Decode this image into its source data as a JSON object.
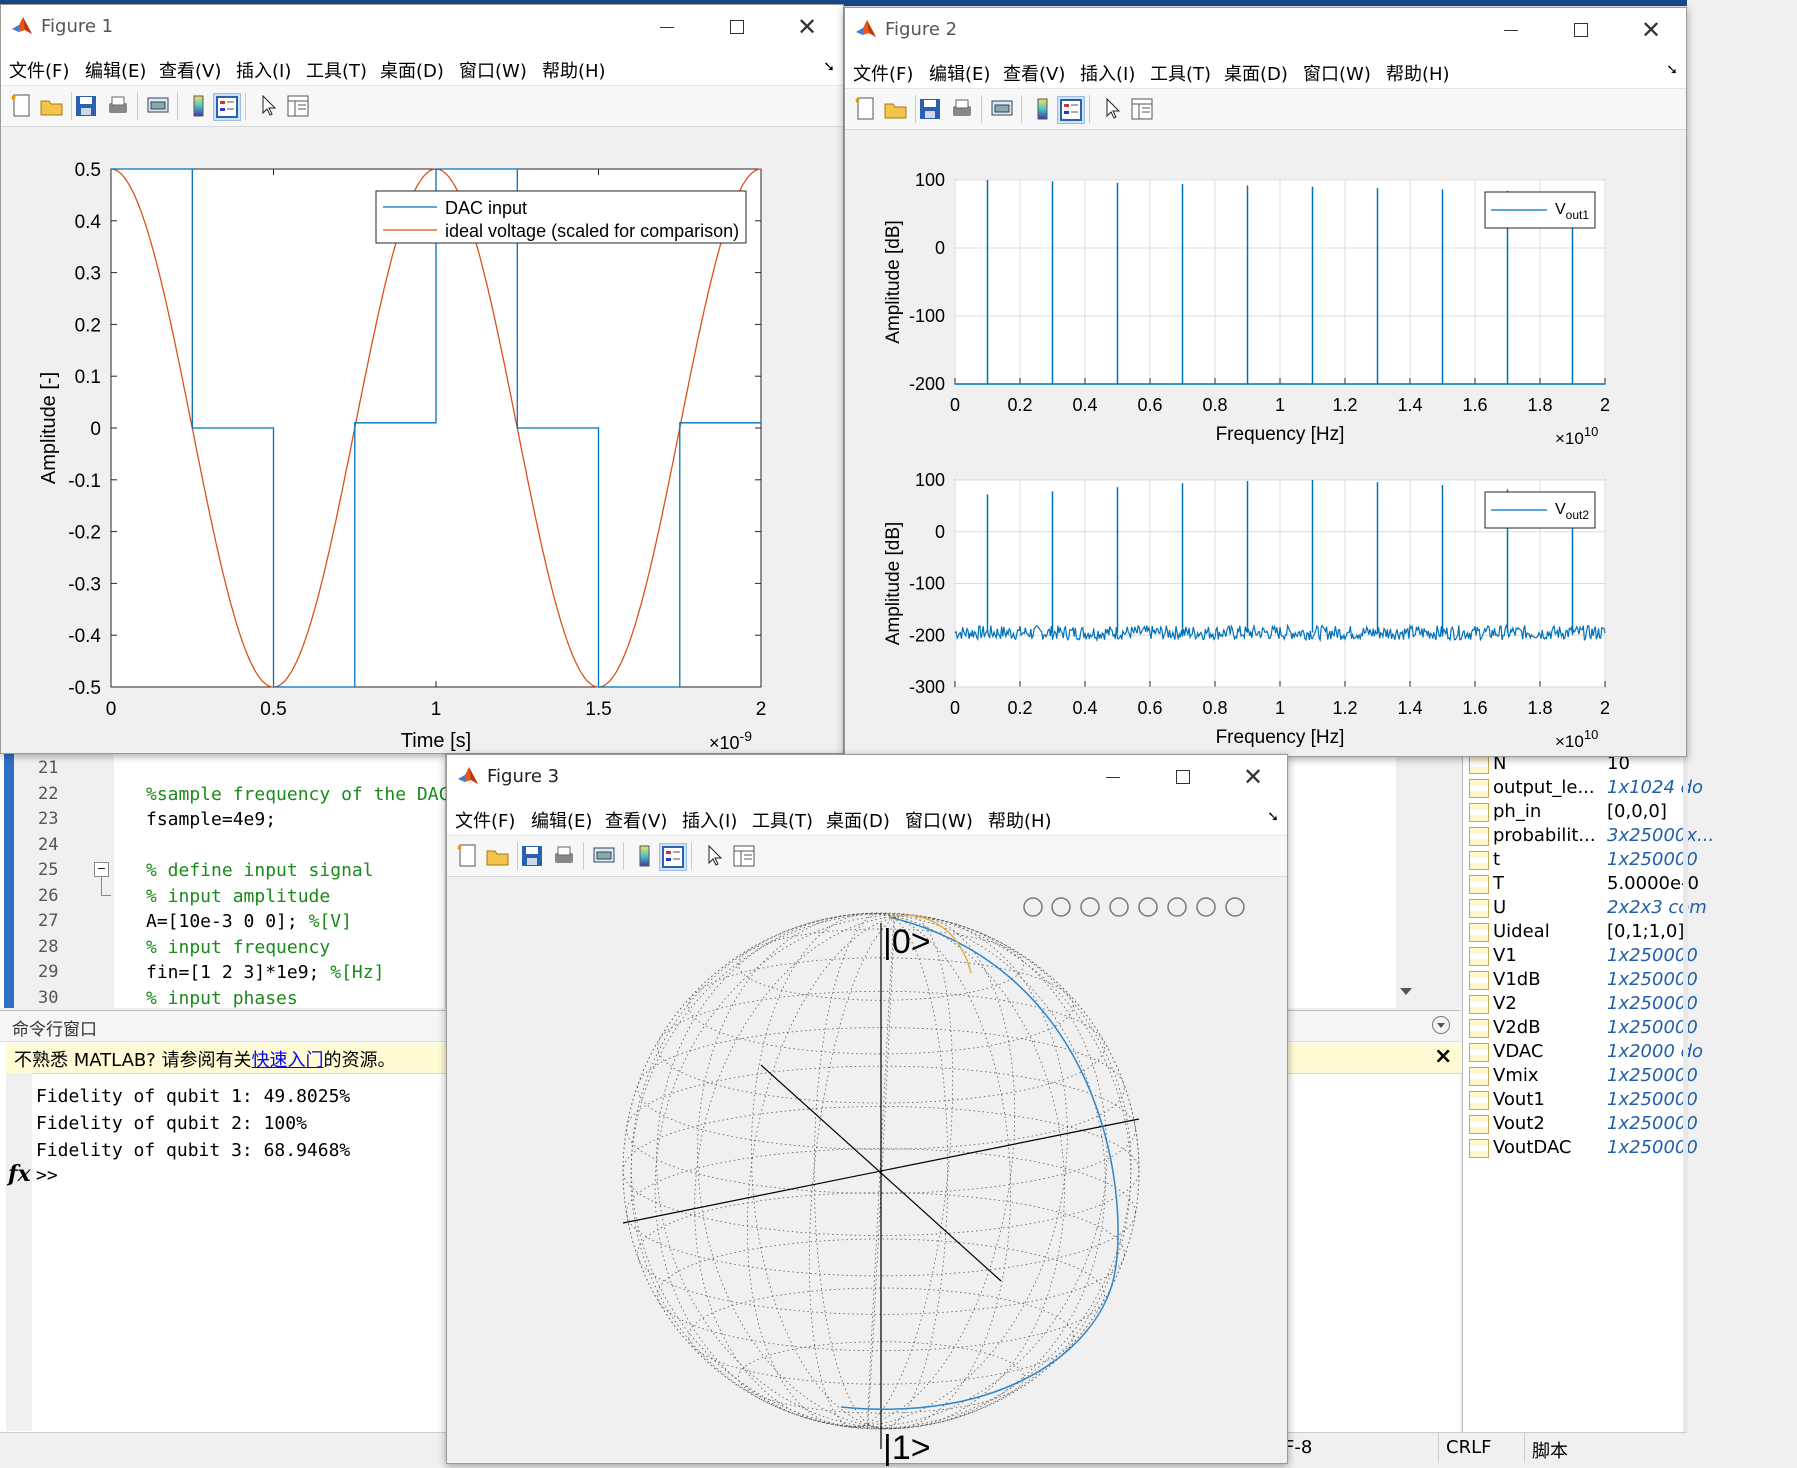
{
  "app": {
    "title_bar_color": "#1a4a8c"
  },
  "menu": [
    "文件(F)",
    "编辑(E)",
    "查看(V)",
    "插入(I)",
    "工具(T)",
    "桌面(D)",
    "窗口(W)",
    "帮助(H)"
  ],
  "figure1": {
    "title": "Figure 1",
    "chart_data": {
      "type": "line",
      "xlabel": "Time [s]",
      "ylabel": "Amplitude [-]",
      "x_exponent": "×10",
      "x_exponent_power": "-9",
      "xlim": [
        0,
        2
      ],
      "ylim": [
        -0.5,
        0.5
      ],
      "xticks": [
        "0",
        "0.5",
        "1",
        "1.5",
        "2"
      ],
      "yticks": [
        "0.5",
        "0.4",
        "0.3",
        "0.2",
        "0.1",
        "0",
        "-0.1",
        "-0.2",
        "-0.3",
        "-0.4",
        "-0.5"
      ],
      "legend_location": "top-right",
      "series": [
        {
          "name": "DAC input",
          "color": "#0072bd",
          "x": [
            0,
            0.25,
            0.25,
            0.5,
            0.5,
            0.75,
            0.75,
            1.0,
            1.0,
            1.25,
            1.25,
            1.5,
            1.5,
            1.75,
            1.75,
            2.0
          ],
          "y": [
            0.5,
            0.5,
            0,
            0,
            -0.5,
            -0.5,
            0.01,
            0.01,
            0.5,
            0.5,
            0,
            0,
            -0.5,
            -0.5,
            0.01,
            0.01
          ]
        },
        {
          "name": "ideal voltage (scaled for comparison)",
          "color": "#d95319",
          "function": "0.5*cos(2*pi*x)"
        }
      ]
    }
  },
  "figure2": {
    "title": "Figure 2",
    "chart_data": [
      {
        "type": "line",
        "xlabel": "Frequency [Hz]",
        "ylabel": "Amplitude [dB]",
        "x_exponent": "×10",
        "x_exponent_power": "10",
        "xlim": [
          0,
          2
        ],
        "ylim": [
          -200,
          100
        ],
        "xticks": [
          "0",
          "0.2",
          "0.4",
          "0.6",
          "0.8",
          "1",
          "1.2",
          "1.4",
          "1.6",
          "1.8",
          "2"
        ],
        "yticks": [
          "100",
          "0",
          "-100",
          "-200"
        ],
        "legend_location": "top-right",
        "series": [
          {
            "name": "V",
            "name_sub": "out1",
            "color": "#0072bd",
            "noise_floor": -200,
            "peaks_x": [
              0.1,
              0.3,
              0.5,
              0.7,
              0.9,
              1.1,
              1.3,
              1.5,
              1.7,
              1.9
            ],
            "peaks_y": [
              100,
              98,
              96,
              94,
              92,
              90,
              88,
              86,
              84,
              82
            ]
          }
        ]
      },
      {
        "type": "line",
        "xlabel": "Frequency [Hz]",
        "ylabel": "Amplitude [dB]",
        "x_exponent": "×10",
        "x_exponent_power": "10",
        "xlim": [
          0,
          2
        ],
        "ylim": [
          -300,
          100
        ],
        "xticks": [
          "0",
          "0.2",
          "0.4",
          "0.6",
          "0.8",
          "1",
          "1.2",
          "1.4",
          "1.6",
          "1.8",
          "2"
        ],
        "yticks": [
          "100",
          "0",
          "-100",
          "-200",
          "-300"
        ],
        "legend_location": "top-right",
        "series": [
          {
            "name": "V",
            "name_sub": "out2",
            "color": "#0072bd",
            "noise_floor": -195,
            "peaks_x": [
              0.1,
              0.3,
              0.5,
              0.7,
              0.9,
              1.1,
              1.3,
              1.5,
              1.7,
              1.9
            ],
            "peaks_y": [
              72,
              78,
              86,
              94,
              98,
              100,
              96,
              90,
              82,
              76
            ]
          }
        ]
      }
    ]
  },
  "figure3": {
    "title": "Figure 3",
    "label_top": "|0>",
    "label_bottom": "|1>",
    "axes_icons": [
      "brush-icon",
      "datatip-icon",
      "legend-icon",
      "rotate-icon",
      "pan-icon",
      "zoom-in-icon",
      "zoom-out-icon",
      "home-icon"
    ]
  },
  "editor": {
    "lines": [
      {
        "n": "21",
        "code": ""
      },
      {
        "n": "22",
        "code": "%sample frequency of the DAC",
        "cls": "cmt"
      },
      {
        "n": "23",
        "code": "fsample=4e9;"
      },
      {
        "n": "24",
        "code": ""
      },
      {
        "n": "25",
        "code": "% define input signal",
        "cls": "cmt"
      },
      {
        "n": "26",
        "code": "% input amplitude",
        "cls": "cmt"
      },
      {
        "n": "27",
        "code": "A=[10e-3 0 0]; %[V]",
        "cls": "mix"
      },
      {
        "n": "28",
        "code": "% input frequency",
        "cls": "cmt"
      },
      {
        "n": "29",
        "code": "fin=[1 2 3]*1e9; %[Hz]",
        "cls": "mix"
      },
      {
        "n": "30",
        "code": "% input phases",
        "cls": "cmt"
      }
    ]
  },
  "command_window": {
    "title": "命令行窗口",
    "notice_pre": "不熟悉 MATLAB? 请参阅有关",
    "notice_link": "快速入门",
    "notice_post": "的资源。",
    "output": [
      "Fidelity of qubit 1: 49.8025%",
      "Fidelity of qubit 2: 100%",
      "Fidelity of qubit 3: 68.9468%"
    ],
    "prompt": ">>"
  },
  "workspace": {
    "rows": [
      {
        "name": "N",
        "value": "10",
        "italic": false
      },
      {
        "name": "output_le...",
        "value": "1x1024 do",
        "italic": true
      },
      {
        "name": "ph_in",
        "value": "[0,0,0]",
        "italic": false
      },
      {
        "name": "probabilit...",
        "value": "3x25000x...",
        "italic": true
      },
      {
        "name": "t",
        "value": "1x250000",
        "italic": true
      },
      {
        "name": "T",
        "value": "5.0000e-0",
        "italic": false
      },
      {
        "name": "U",
        "value": "2x2x3 com",
        "italic": true
      },
      {
        "name": "Uideal",
        "value": "[0,1;1,0]",
        "italic": false
      },
      {
        "name": "V1",
        "value": "1x250000",
        "italic": true
      },
      {
        "name": "V1dB",
        "value": "1x250000",
        "italic": true
      },
      {
        "name": "V2",
        "value": "1x250000",
        "italic": true
      },
      {
        "name": "V2dB",
        "value": "1x250000",
        "italic": true
      },
      {
        "name": "VDAC",
        "value": "1x2000 do",
        "italic": true
      },
      {
        "name": "Vmix",
        "value": "1x250000",
        "italic": true
      },
      {
        "name": "Vout1",
        "value": "1x250000",
        "italic": true
      },
      {
        "name": "Vout2",
        "value": "1x250000",
        "italic": true
      },
      {
        "name": "VoutDAC",
        "value": "1x250000",
        "italic": true
      }
    ]
  },
  "status_bar": {
    "encoding": "F-8",
    "eol": "CRLF",
    "type": "脚本"
  }
}
